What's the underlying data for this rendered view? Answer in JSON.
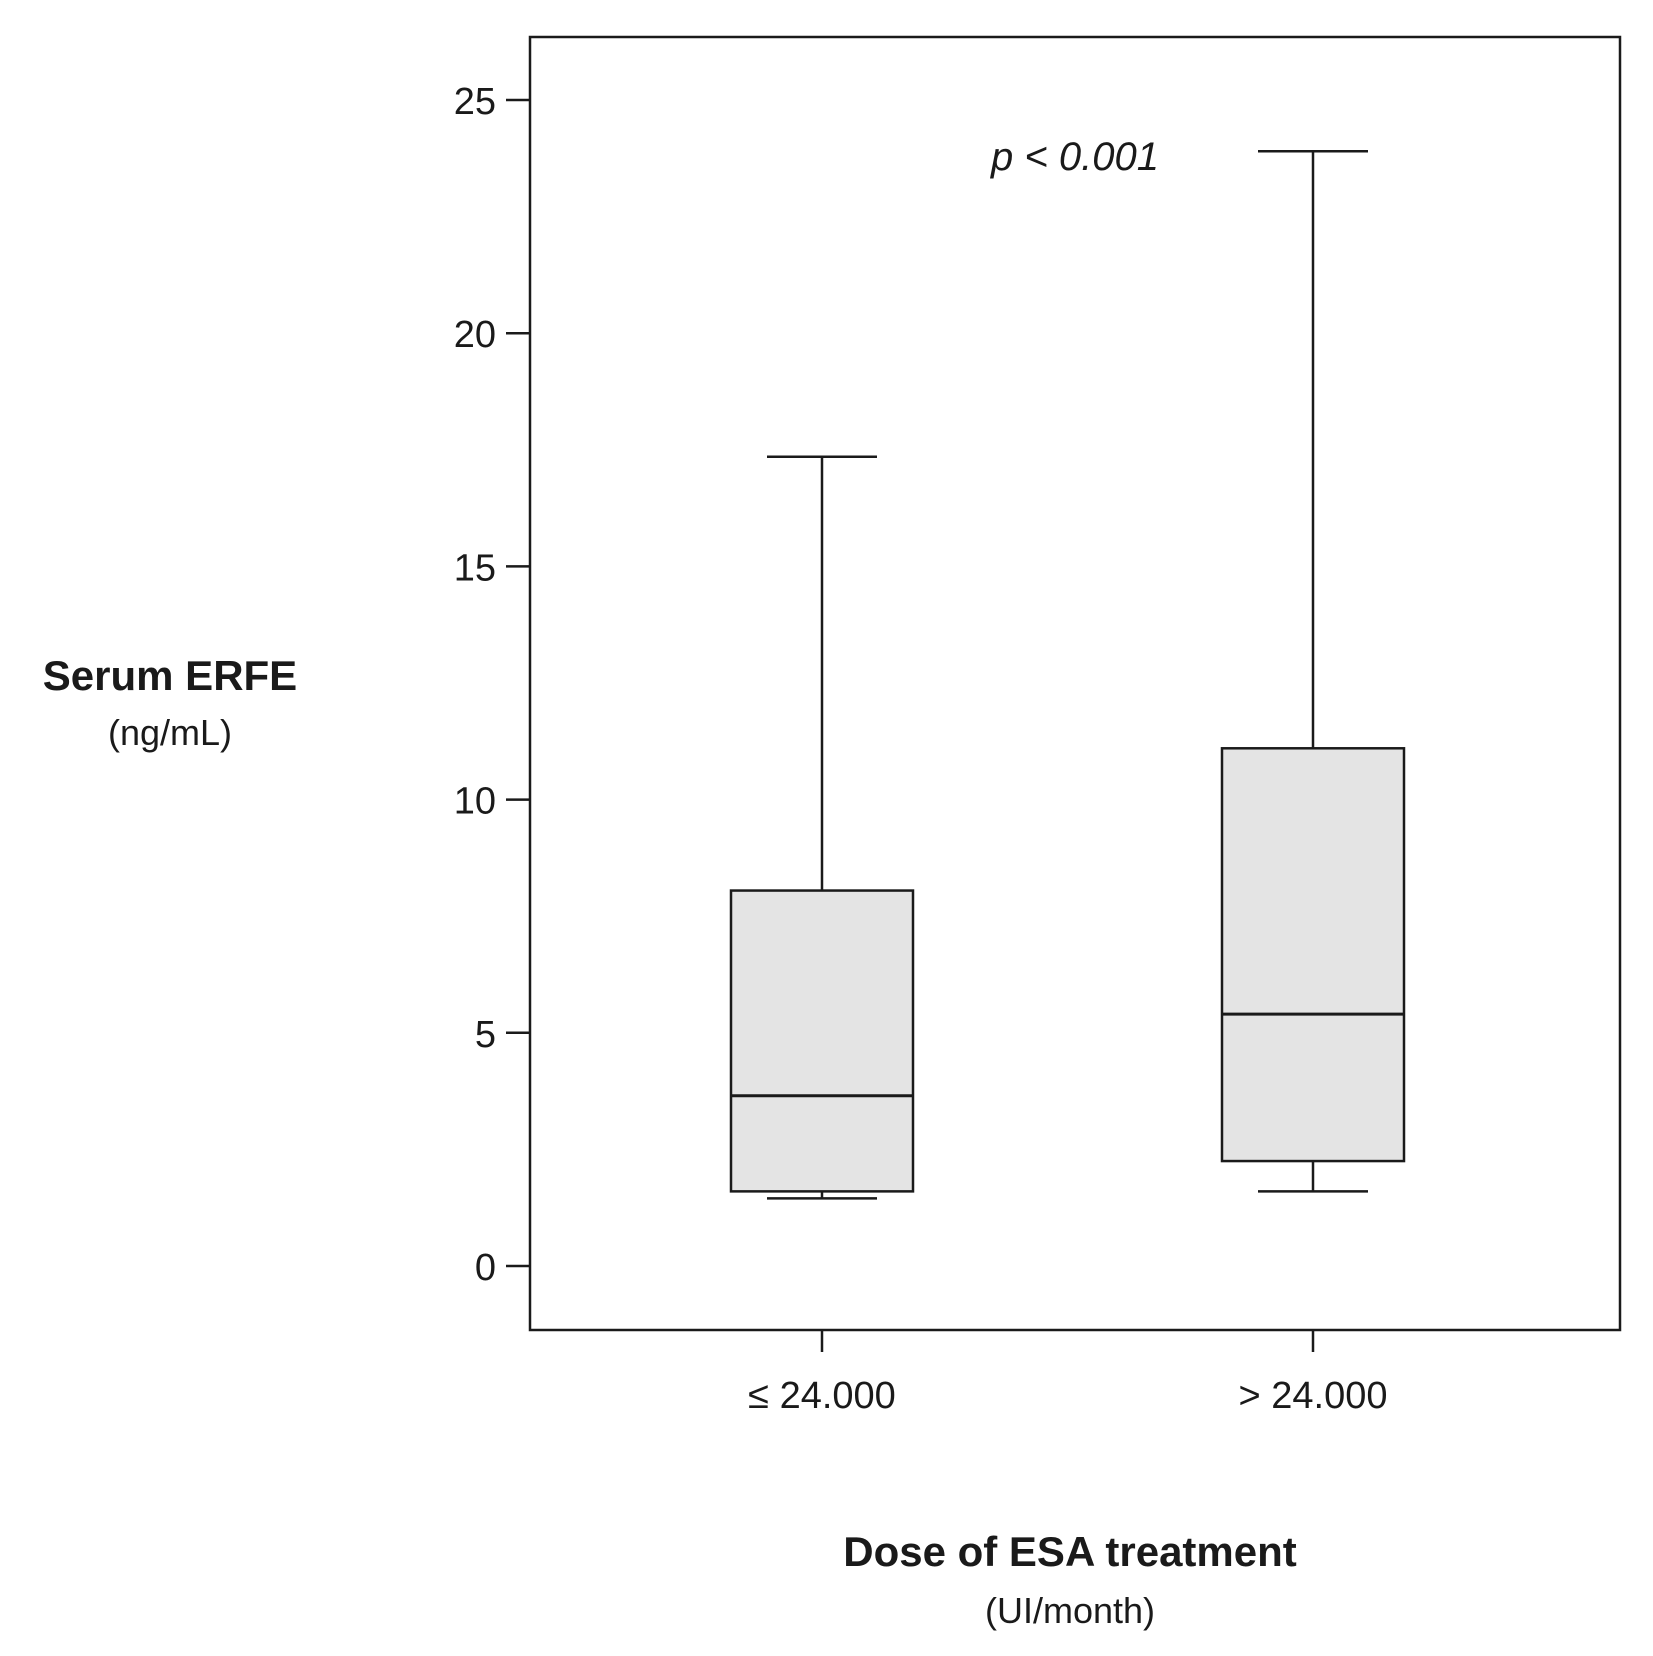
{
  "chart_data": {
    "type": "box",
    "title": "",
    "ylabel": "Serum ERFE",
    "ylabel_unit": "(ng/mL)",
    "xlabel": "Dose of ESA treatment",
    "xlabel_unit": "(UI/month)",
    "ylim": [
      -1.4,
      26.3
    ],
    "yticks": [
      0,
      5,
      10,
      15,
      20,
      25
    ],
    "annotation": "p < 0.001",
    "categories": [
      "≤ 24.000",
      "> 24.000"
    ],
    "boxes": [
      {
        "label": "≤ 24.000",
        "whisker_low": 1.45,
        "q1": 1.6,
        "median": 3.65,
        "q3": 8.05,
        "whisker_high": 17.35
      },
      {
        "label": "> 24.000",
        "whisker_low": 1.6,
        "q1": 2.25,
        "median": 5.4,
        "q3": 11.1,
        "whisker_high": 23.9
      }
    ],
    "box_fill": "#e4e4e4",
    "line_color": "#1a1a1a",
    "grid": false,
    "legend": "none"
  }
}
